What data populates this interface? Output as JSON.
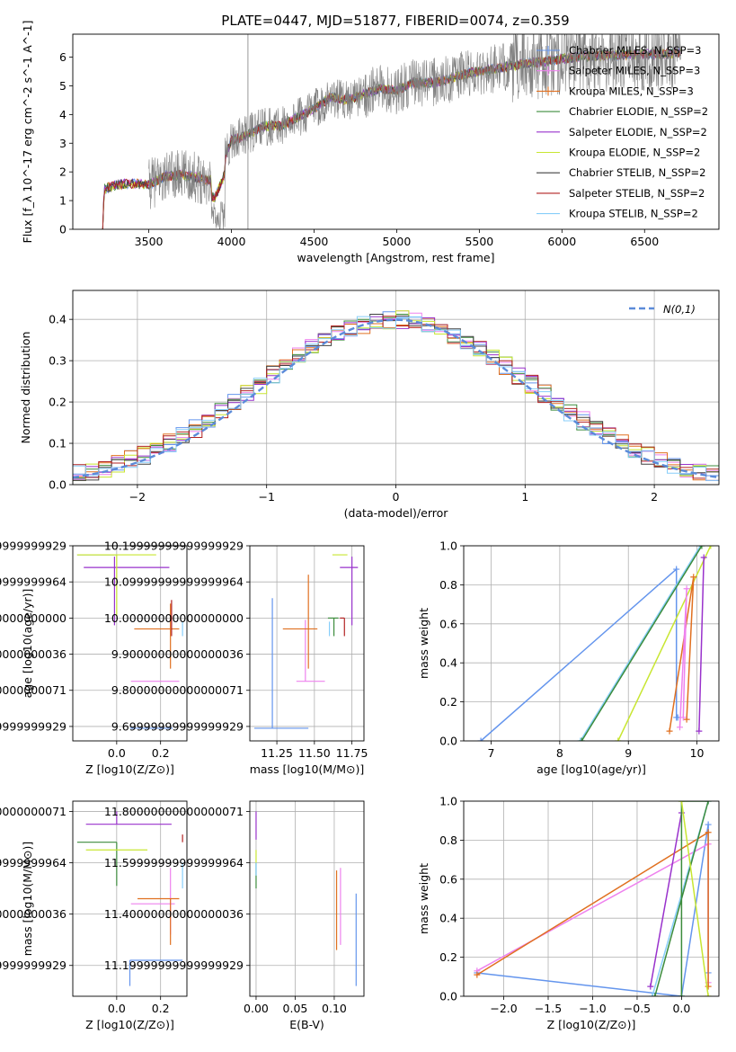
{
  "figure": {
    "title": "PLATE=0447, MJD=51877, FIBERID=0074, z=0.359"
  },
  "chart_data": [
    {
      "id": "spectrum",
      "type": "line",
      "title": "PLATE=0447, MJD=51877, FIBERID=0074, z=0.359",
      "xlabel": "wavelength [Angstrom, rest frame]",
      "ylabel": "Flux [f_λ 10^-17 erg cm^-2 s^-1 A^-1]",
      "xlim": [
        3040,
        6950
      ],
      "ylim": [
        0,
        6.8
      ],
      "xticks": [
        3500,
        4000,
        4500,
        5000,
        5500,
        6000,
        6500
      ],
      "yticks": [
        0,
        1,
        2,
        3,
        4,
        5,
        6
      ],
      "grid": false,
      "legend_position": "upper-right",
      "series_shape": [
        [
          3220,
          0
        ],
        [
          3230,
          1.4
        ],
        [
          3300,
          1.55
        ],
        [
          3400,
          1.6
        ],
        [
          3500,
          1.55
        ],
        [
          3600,
          1.85
        ],
        [
          3700,
          1.9
        ],
        [
          3800,
          1.8
        ],
        [
          3900,
          1.7
        ],
        [
          3950,
          2.4
        ],
        [
          4000,
          3.1
        ],
        [
          4100,
          3.3
        ],
        [
          4200,
          3.6
        ],
        [
          4300,
          3.6
        ],
        [
          4400,
          3.9
        ],
        [
          4500,
          4.2
        ],
        [
          4600,
          4.6
        ],
        [
          4700,
          4.5
        ],
        [
          4800,
          4.7
        ],
        [
          4900,
          4.9
        ],
        [
          5000,
          4.85
        ],
        [
          5100,
          5.1
        ],
        [
          5200,
          5.1
        ],
        [
          5300,
          5.2
        ],
        [
          5400,
          5.4
        ],
        [
          5500,
          5.5
        ],
        [
          5600,
          5.6
        ],
        [
          5700,
          5.7
        ],
        [
          5800,
          5.8
        ],
        [
          5900,
          5.85
        ],
        [
          6000,
          5.95
        ],
        [
          6100,
          6.0
        ],
        [
          6200,
          6.05
        ],
        [
          6300,
          6.05
        ],
        [
          6400,
          6.1
        ],
        [
          6500,
          6.1
        ],
        [
          6600,
          6.1
        ],
        [
          6700,
          6.15
        ]
      ],
      "series": [
        {
          "name": "Chabrier MILES, N_SSP=3",
          "color": "#6495ed"
        },
        {
          "name": "Salpeter MILES, N_SSP=3",
          "color": "#ee82ee"
        },
        {
          "name": "Kroupa MILES, N_SSP=3",
          "color": "#e07020"
        },
        {
          "name": "Chabrier ELODIE, N_SSP=2",
          "color": "#3c8c3c"
        },
        {
          "name": "Salpeter ELODIE, N_SSP=2",
          "color": "#9932cc"
        },
        {
          "name": "Kroupa ELODIE, N_SSP=2",
          "color": "#c8e632"
        },
        {
          "name": "Chabrier STELIB, N_SSP=2",
          "color": "#404040"
        },
        {
          "name": "Salpeter STELIB, N_SSP=2",
          "color": "#b22222"
        },
        {
          "name": "Kroupa STELIB, N_SSP=2",
          "color": "#87cefa"
        }
      ]
    },
    {
      "id": "residuals",
      "type": "histogram",
      "xlabel": "(data-model)/error",
      "ylabel": "Normed distribution",
      "xlim": [
        -2.5,
        2.5
      ],
      "ylim": [
        0,
        0.47
      ],
      "xticks": [
        -2,
        -1,
        0,
        1,
        2
      ],
      "yticks": [
        0.0,
        0.1,
        0.2,
        0.3,
        0.4
      ],
      "grid": true,
      "legend": "N(0,1)",
      "legend_position": "upper-right",
      "bin_width": 0.1
    },
    {
      "id": "age_vs_Z",
      "type": "errorbar",
      "xlabel": "Z [log10(Z/Z⊙)]",
      "ylabel": "age  [log10(age/yr)]",
      "xlim": [
        -0.2,
        0.32
      ],
      "ylim": [
        9.66,
        10.2
      ],
      "xticks": [
        0.0,
        0.2
      ],
      "yticks": [
        9.7,
        9.8,
        9.9,
        10.0,
        10.1,
        10.2
      ],
      "grid": true,
      "points": [
        {
          "color": "#6495ed",
          "x": 0.245,
          "xerr": [
            0.185,
            0.01
          ],
          "y": 9.695,
          "yerr": [
            0.0,
            0.0
          ]
        },
        {
          "color": "#ee82ee",
          "x": 0.245,
          "xerr": [
            0.18,
            0.04
          ],
          "y": 9.825,
          "yerr": [
            0.0,
            0.0
          ]
        },
        {
          "color": "#e07020",
          "x": 0.245,
          "xerr": [
            0.165,
            0.04
          ],
          "y": 9.97,
          "yerr": [
            0.11,
            0.07
          ]
        },
        {
          "color": "#3c8c3c",
          "x": 0.0,
          "xerr": [
            0.18,
            0.0
          ],
          "y": 10.175,
          "yerr": [
            0.0,
            0.0
          ]
        },
        {
          "color": "#9932cc",
          "x": -0.01,
          "xerr": [
            0.14,
            0.25
          ],
          "y": 10.14,
          "yerr": [
            0.16,
            0.03
          ]
        },
        {
          "color": "#c8e632",
          "x": 0.0,
          "xerr": [
            0.18,
            0.18
          ],
          "y": 10.175,
          "yerr": [
            0.17,
            0.0
          ]
        },
        {
          "color": "#b22222",
          "x": 0.25,
          "xerr": [
            0.0,
            0.0
          ],
          "y": 10.0,
          "yerr": [
            0.05,
            0.05
          ]
        },
        {
          "color": "#87cefa",
          "x": 0.3,
          "xerr": [
            0.0,
            0.0
          ],
          "y": 9.97,
          "yerr": [
            0.02,
            0.02
          ]
        }
      ]
    },
    {
      "id": "age_vs_mass",
      "type": "errorbar",
      "xlabel": "mass [log10(M/M⊙)]",
      "ylabel": "",
      "xlim": [
        11.07,
        11.83
      ],
      "ylim": [
        9.66,
        10.2
      ],
      "xticks": [
        11.25,
        11.5,
        11.75
      ],
      "yticks": [
        9.7,
        9.8,
        9.9,
        10.0,
        10.1,
        10.2
      ],
      "grid": true,
      "points": [
        {
          "color": "#6495ed",
          "x": 11.22,
          "xerr": [
            0.12,
            0.24
          ],
          "y": 9.695,
          "yerr": [
            0.0,
            0.36
          ]
        },
        {
          "color": "#ee82ee",
          "x": 11.44,
          "xerr": [
            0.06,
            0.13
          ],
          "y": 9.825,
          "yerr": [
            0.0,
            0.17
          ]
        },
        {
          "color": "#e07020",
          "x": 11.46,
          "xerr": [
            0.17,
            0.06
          ],
          "y": 9.97,
          "yerr": [
            0.11,
            0.15
          ]
        },
        {
          "color": "#9932cc",
          "x": 11.75,
          "xerr": [
            0.08,
            0.04
          ],
          "y": 10.14,
          "yerr": [
            0.16,
            0.03
          ]
        },
        {
          "color": "#c8e632",
          "x": 11.66,
          "xerr": [
            0.04,
            0.06
          ],
          "y": 10.175,
          "yerr": [
            0.0,
            0.0
          ]
        },
        {
          "color": "#3c8c3c",
          "x": 11.63,
          "xerr": [
            0.04,
            0.03
          ],
          "y": 10.0,
          "yerr": [
            0.05,
            0.0
          ]
        },
        {
          "color": "#b22222",
          "x": 11.7,
          "xerr": [
            0.03,
            0.0
          ],
          "y": 10.0,
          "yerr": [
            0.05,
            0.0
          ]
        },
        {
          "color": "#87cefa",
          "x": 11.6,
          "xerr": [
            0.0,
            0.0
          ],
          "y": 9.97,
          "yerr": [
            0.02,
            0.02
          ]
        }
      ]
    },
    {
      "id": "weight_vs_age",
      "type": "line",
      "xlabel": "age  [log10(age/yr)]",
      "ylabel": "mass weight",
      "xlim": [
        6.6,
        10.32
      ],
      "ylim": [
        0,
        1
      ],
      "xticks": [
        7,
        8,
        9,
        10
      ],
      "yticks": [
        0.0,
        0.2,
        0.4,
        0.6,
        0.8,
        1.0
      ],
      "grid": true,
      "series": [
        {
          "color": "#6495ed",
          "x": [
            6.85,
            9.7,
            9.7,
            9.72
          ],
          "y": [
            0.0,
            0.88,
            0.12,
            0.12
          ]
        },
        {
          "color": "#87cefa",
          "x": [
            8.3,
            10.05
          ],
          "y": [
            0.0,
            1.0
          ]
        },
        {
          "color": "#3c8c3c",
          "x": [
            8.32,
            10.07
          ],
          "y": [
            0.0,
            1.0
          ]
        },
        {
          "color": "#c8e632",
          "x": [
            8.85,
            10.2
          ],
          "y": [
            0.0,
            1.0
          ]
        },
        {
          "color": "#e07020",
          "x": [
            9.6,
            9.95,
            9.85
          ],
          "y": [
            0.05,
            0.84,
            0.11
          ]
        },
        {
          "color": "#ee82ee",
          "x": [
            9.75,
            9.85,
            9.8
          ],
          "y": [
            0.07,
            0.78,
            0.12
          ]
        },
        {
          "color": "#9932cc",
          "x": [
            10.03,
            10.1
          ],
          "y": [
            0.05,
            0.94
          ]
        }
      ]
    },
    {
      "id": "mass_vs_Z",
      "type": "errorbar",
      "xlabel": "Z [log10(Z/Z⊙)]",
      "ylabel": "mass [log10(M/M⊙)]",
      "xlim": [
        -0.2,
        0.32
      ],
      "ylim": [
        11.08,
        11.84
      ],
      "xticks": [
        0.0,
        0.2
      ],
      "yticks": [
        11.2,
        11.4,
        11.6,
        11.8
      ],
      "grid": true,
      "points": [
        {
          "color": "#6495ed",
          "x": 0.06,
          "xerr": [
            0.0,
            0.24
          ],
          "y": 11.22,
          "yerr": [
            0.1,
            0.0
          ]
        },
        {
          "color": "#ee82ee",
          "x": 0.245,
          "xerr": [
            0.18,
            0.02
          ],
          "y": 11.44,
          "yerr": [
            0.12,
            0.14
          ]
        },
        {
          "color": "#e07020",
          "x": 0.245,
          "xerr": [
            0.15,
            0.04
          ],
          "y": 11.46,
          "yerr": [
            0.18,
            0.0
          ]
        },
        {
          "color": "#9932cc",
          "x": 0.0,
          "xerr": [
            0.14,
            0.25
          ],
          "y": 11.75,
          "yerr": [
            0.0,
            0.05
          ]
        },
        {
          "color": "#3c8c3c",
          "x": 0.0,
          "xerr": [
            0.18,
            0.0
          ],
          "y": 11.68,
          "yerr": [
            0.17,
            0.0
          ]
        },
        {
          "color": "#c8e632",
          "x": 0.0,
          "xerr": [
            0.14,
            0.14
          ],
          "y": 11.65,
          "yerr": [
            0.0,
            0.0
          ]
        },
        {
          "color": "#b22222",
          "x": 0.3,
          "xerr": [
            0.0,
            0.0
          ],
          "y": 11.68,
          "yerr": [
            0.0,
            0.03
          ]
        },
        {
          "color": "#87cefa",
          "x": 0.3,
          "xerr": [
            0.0,
            0.0
          ],
          "y": 11.6,
          "yerr": [
            0.1,
            0.0
          ]
        }
      ]
    },
    {
      "id": "mass_vs_ebv",
      "type": "errorbar",
      "xlabel": "E(B-V)",
      "ylabel": "",
      "xlim": [
        -0.008,
        0.138
      ],
      "ylim": [
        11.08,
        11.84
      ],
      "xticks": [
        0.0,
        0.05,
        0.1
      ],
      "yticks": [
        11.2,
        11.4,
        11.6,
        11.8
      ],
      "grid": true,
      "points": [
        {
          "color": "#6495ed",
          "x": 0.128,
          "xerr": [
            0.0,
            0.0
          ],
          "y": 11.22,
          "yerr": [
            0.1,
            0.26
          ]
        },
        {
          "color": "#ee82ee",
          "x": 0.108,
          "xerr": [
            0.0,
            0.0
          ],
          "y": 11.44,
          "yerr": [
            0.16,
            0.14
          ]
        },
        {
          "color": "#e07020",
          "x": 0.103,
          "xerr": [
            0.0,
            0.0
          ],
          "y": 11.46,
          "yerr": [
            0.2,
            0.11
          ]
        },
        {
          "color": "#9932cc",
          "x": 0.0,
          "xerr": [
            0.0,
            0.0
          ],
          "y": 11.75,
          "yerr": [
            0.06,
            0.05
          ]
        },
        {
          "color": "#3c8c3c",
          "x": 0.0,
          "xerr": [
            0.0,
            0.0
          ],
          "y": 11.6,
          "yerr": [
            0.1,
            0.0
          ]
        },
        {
          "color": "#c8e632",
          "x": 0.0,
          "xerr": [
            0.0,
            0.0
          ],
          "y": 11.65,
          "yerr": [
            0.05,
            0.0
          ]
        },
        {
          "color": "#87cefa",
          "x": 0.0,
          "xerr": [
            0.0,
            0.0
          ],
          "y": 11.55,
          "yerr": [
            0.0,
            0.05
          ]
        }
      ]
    },
    {
      "id": "weight_vs_Z",
      "type": "line",
      "xlabel": "Z [log10(Z/Z⊙)]",
      "ylabel": "mass weight",
      "xlim": [
        -2.45,
        0.42
      ],
      "ylim": [
        0,
        1
      ],
      "xticks": [
        -2.0,
        -1.5,
        -1.0,
        -0.5,
        0.0
      ],
      "yticks": [
        0.0,
        0.2,
        0.4,
        0.6,
        0.8,
        1.0
      ],
      "grid": true,
      "series": [
        {
          "color": "#6495ed",
          "x": [
            -2.3,
            0.0,
            0.3,
            0.3
          ],
          "y": [
            0.12,
            0.0,
            0.88,
            0.12
          ]
        },
        {
          "color": "#ee82ee",
          "x": [
            -2.3,
            0.3,
            0.3
          ],
          "y": [
            0.13,
            0.78,
            0.07
          ]
        },
        {
          "color": "#e07020",
          "x": [
            -2.3,
            0.3,
            0.3
          ],
          "y": [
            0.11,
            0.84,
            0.05
          ]
        },
        {
          "color": "#9932cc",
          "x": [
            -0.35,
            0.0
          ],
          "y": [
            0.05,
            0.94
          ]
        },
        {
          "color": "#87cefa",
          "x": [
            -0.33,
            0.3
          ],
          "y": [
            0.0,
            1.0
          ]
        },
        {
          "color": "#3c8c3c",
          "x": [
            -0.3,
            0.3,
            0.0,
            0.0
          ],
          "y": [
            0.0,
            1.0,
            1.0,
            0.0
          ]
        },
        {
          "color": "#c8e632",
          "x": [
            0.0,
            0.3
          ],
          "y": [
            1.0,
            0.0
          ]
        }
      ]
    }
  ]
}
